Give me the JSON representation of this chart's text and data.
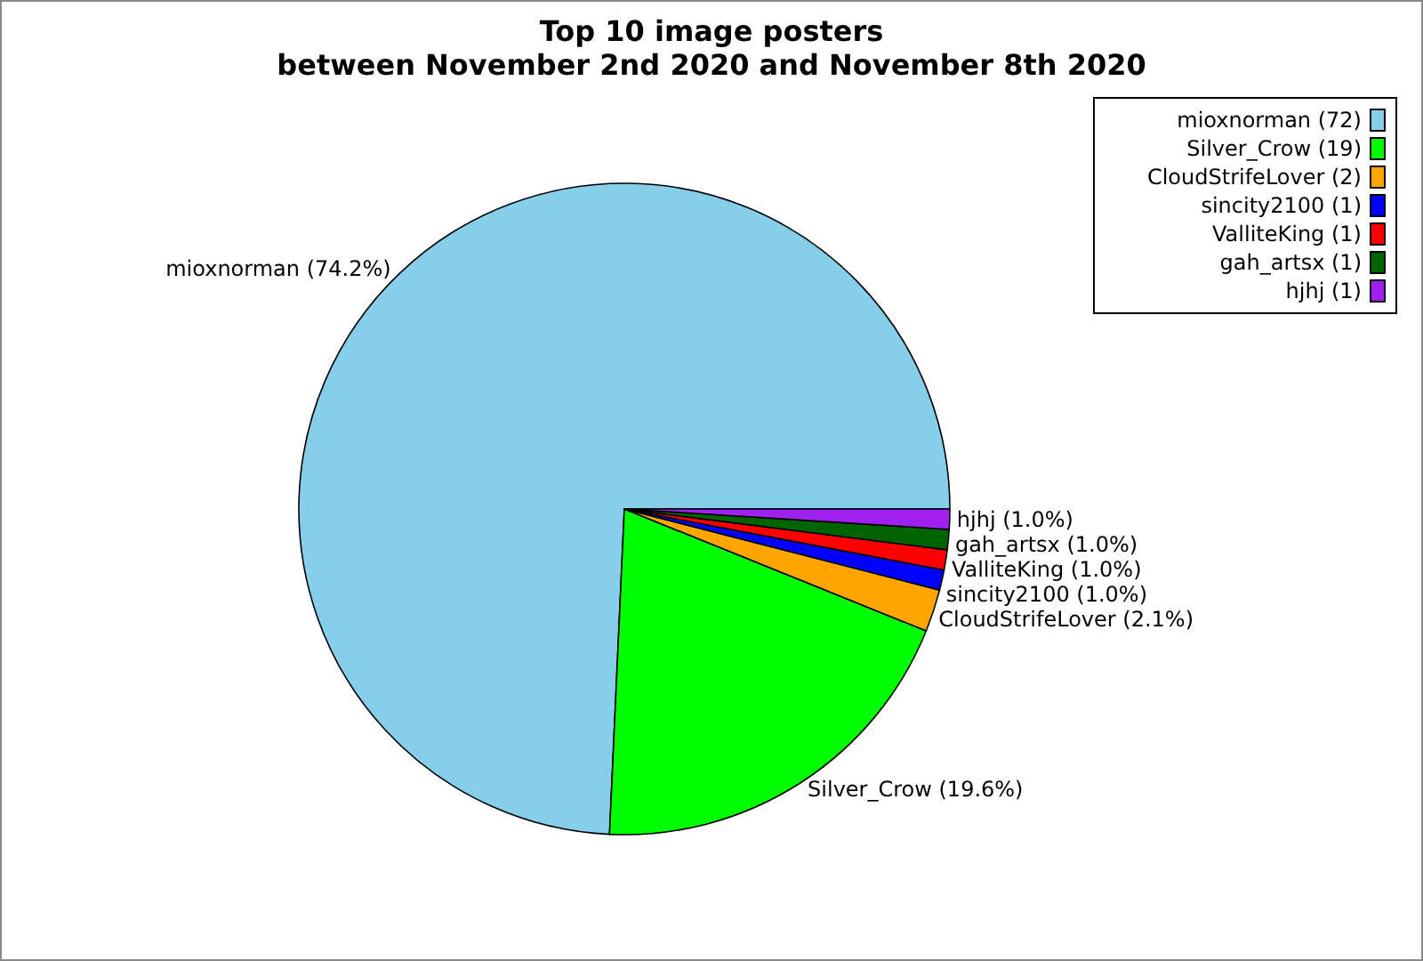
{
  "chart_data": {
    "type": "pie",
    "title": "Top 10 image posters\nbetween November 2nd 2020 and November 8th 2020",
    "categories": [
      "mioxnorman (72)",
      "Silver_Crow (19)",
      "CloudStrifeLover (2)",
      "sincity2100 (1)",
      "ValliteKing (1)",
      "gah_artsx (1)",
      "hjhj (1)"
    ],
    "values": [
      74.2,
      19.6,
      2.1,
      1.0,
      1.0,
      1.0,
      1.0
    ],
    "value_labels": [
      "mioxnorman (74.2%)",
      "Silver_Crow (19.6%)",
      "CloudStrifeLover (2.1%)",
      "sincity2100 (1.0%)",
      "ValliteKing (1.0%)",
      "gah_artsx (1.0%)",
      "hjhj (1.0%)"
    ],
    "colors": [
      "#87ceeb",
      "#00ff00",
      "#ffa500",
      "#0000ff",
      "#ff0000",
      "#006400",
      "#a020f0"
    ],
    "legend": "top right"
  }
}
